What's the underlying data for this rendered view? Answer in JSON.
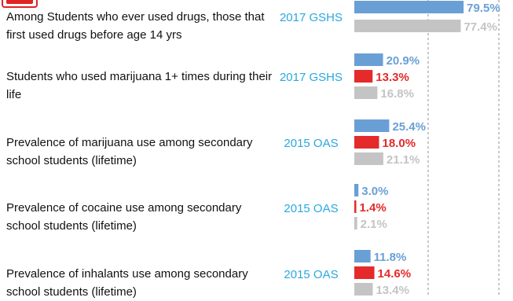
{
  "colors": {
    "series_a": "#6a9fd6",
    "series_b": "#e42a2a",
    "series_c": "#c4c4c4",
    "source": "#29a8e0",
    "text": "#111111"
  },
  "chart_data": {
    "type": "bar",
    "orientation": "horizontal",
    "grid": "vertical dashed reference lines",
    "categories": [
      {
        "label": "Among Students who ever used drugs, those that first used drugs before age 14 yrs",
        "source": "2017 GSHS",
        "values": [
          79.5,
          null,
          77.4
        ]
      },
      {
        "label": "Students who used marijuana 1+ times during their life",
        "source": "2017 GSHS",
        "values": [
          20.9,
          13.3,
          16.8
        ]
      },
      {
        "label": "Prevalence of marijuana use among secondary school students (lifetime)",
        "source": "2015 OAS",
        "values": [
          25.4,
          18.0,
          21.1
        ]
      },
      {
        "label": "Prevalence of cocaine use among secondary school students (lifetime)",
        "source": "2015 OAS",
        "values": [
          3.0,
          1.4,
          2.1
        ]
      },
      {
        "label": "Prevalence of inhalants use among secondary school students (lifetime)",
        "source": "2015 OAS",
        "values": [
          11.8,
          14.6,
          13.4
        ]
      }
    ],
    "value_labels": [
      [
        "79.5%",
        null,
        "77.4%"
      ],
      [
        "20.9%",
        "13.3%",
        "16.8%"
      ],
      [
        "25.4%",
        "18.0%",
        "21.1%"
      ],
      [
        "3.0%",
        "1.4%",
        "2.1%"
      ],
      [
        "11.8%",
        "14.6%",
        "13.4%"
      ]
    ]
  }
}
